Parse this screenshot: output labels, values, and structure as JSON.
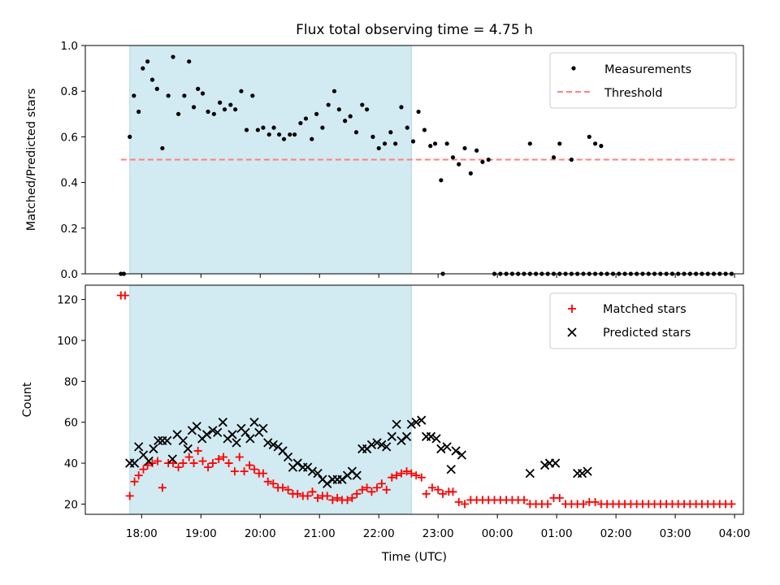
{
  "chart_data": {
    "title": "Flux total observing time = 4.75 h",
    "xlabel": "Time (UTC)",
    "x_ticks": [
      "18:00",
      "19:00",
      "20:00",
      "21:00",
      "22:00",
      "23:00",
      "00:00",
      "01:00",
      "02:00",
      "03:00",
      "04:00"
    ],
    "x_range_hours": [
      17.05,
      28.15
    ],
    "observing_window_hours": [
      17.8,
      22.55
    ],
    "colors": {
      "window": "#add8e6",
      "threshold": "#ff7f7f",
      "measurements": "#000000",
      "matched": "#ff0000",
      "predicted": "#000000"
    },
    "top": {
      "type": "scatter",
      "ylabel": "Matched/Predicted stars",
      "ylim": [
        0,
        1.0
      ],
      "y_ticks": [
        "0.0",
        "0.2",
        "0.4",
        "0.6",
        "0.8",
        "1.0"
      ],
      "legend": {
        "position": "top-right",
        "entries": [
          "Measurements",
          "Threshold"
        ]
      },
      "threshold": {
        "value": 0.5,
        "x_range": [
          17.65,
          28.0
        ]
      },
      "measurements": [
        [
          17.65,
          0
        ],
        [
          17.7,
          0
        ],
        [
          17.8,
          0.6
        ],
        [
          17.87,
          0.78
        ],
        [
          17.95,
          0.71
        ],
        [
          18.02,
          0.9
        ],
        [
          18.1,
          0.93
        ],
        [
          18.18,
          0.85
        ],
        [
          18.26,
          0.81
        ],
        [
          18.35,
          0.55
        ],
        [
          18.45,
          0.78
        ],
        [
          18.53,
          0.95
        ],
        [
          18.62,
          0.7
        ],
        [
          18.72,
          0.78
        ],
        [
          18.8,
          0.93
        ],
        [
          18.88,
          0.73
        ],
        [
          18.95,
          0.81
        ],
        [
          19.03,
          0.79
        ],
        [
          19.12,
          0.71
        ],
        [
          19.22,
          0.7
        ],
        [
          19.32,
          0.75
        ],
        [
          19.4,
          0.72
        ],
        [
          19.5,
          0.74
        ],
        [
          19.58,
          0.72
        ],
        [
          19.68,
          0.8
        ],
        [
          19.77,
          0.63
        ],
        [
          19.87,
          0.78
        ],
        [
          19.96,
          0.63
        ],
        [
          20.05,
          0.64
        ],
        [
          20.15,
          0.61
        ],
        [
          20.23,
          0.64
        ],
        [
          20.32,
          0.61
        ],
        [
          20.4,
          0.59
        ],
        [
          20.5,
          0.61
        ],
        [
          20.58,
          0.61
        ],
        [
          20.68,
          0.66
        ],
        [
          20.77,
          0.68
        ],
        [
          20.87,
          0.59
        ],
        [
          20.95,
          0.7
        ],
        [
          21.05,
          0.64
        ],
        [
          21.15,
          0.74
        ],
        [
          21.25,
          0.8
        ],
        [
          21.33,
          0.72
        ],
        [
          21.43,
          0.67
        ],
        [
          21.52,
          0.69
        ],
        [
          21.62,
          0.62
        ],
        [
          21.72,
          0.74
        ],
        [
          21.8,
          0.72
        ],
        [
          21.9,
          0.6
        ],
        [
          22.0,
          0.55
        ],
        [
          22.1,
          0.57
        ],
        [
          22.2,
          0.62
        ],
        [
          22.28,
          0.57
        ],
        [
          22.38,
          0.73
        ],
        [
          22.48,
          0.64
        ],
        [
          22.58,
          0.58
        ],
        [
          22.67,
          0.71
        ],
        [
          22.77,
          0.63
        ],
        [
          22.87,
          0.56
        ],
        [
          22.95,
          0.57
        ],
        [
          23.05,
          0.41
        ],
        [
          23.15,
          0.57
        ],
        [
          23.25,
          0.51
        ],
        [
          23.35,
          0.48
        ],
        [
          23.45,
          0.55
        ],
        [
          23.55,
          0.44
        ],
        [
          23.65,
          0.54
        ],
        [
          23.75,
          0.49
        ],
        [
          23.85,
          0.5
        ],
        [
          23.08,
          0
        ],
        [
          23.95,
          0
        ],
        [
          24.05,
          0
        ],
        [
          24.15,
          0
        ],
        [
          24.25,
          0
        ],
        [
          24.35,
          0
        ],
        [
          24.45,
          0
        ],
        [
          24.55,
          0
        ],
        [
          24.65,
          0
        ],
        [
          24.75,
          0
        ],
        [
          24.85,
          0
        ],
        [
          24.95,
          0
        ],
        [
          25.05,
          0
        ],
        [
          25.15,
          0
        ],
        [
          25.25,
          0
        ],
        [
          25.35,
          0
        ],
        [
          25.45,
          0
        ],
        [
          25.55,
          0
        ],
        [
          25.65,
          0
        ],
        [
          25.75,
          0
        ],
        [
          24.55,
          0.57
        ],
        [
          24.95,
          0.51
        ],
        [
          25.05,
          0.57
        ],
        [
          25.25,
          0.5
        ],
        [
          25.55,
          0.6
        ],
        [
          25.65,
          0.57
        ],
        [
          25.75,
          0.56
        ],
        [
          25.85,
          0
        ],
        [
          25.95,
          0
        ],
        [
          26.05,
          0
        ],
        [
          26.15,
          0
        ],
        [
          26.25,
          0
        ],
        [
          26.35,
          0
        ],
        [
          26.45,
          0
        ],
        [
          26.55,
          0
        ],
        [
          26.65,
          0
        ],
        [
          26.75,
          0
        ],
        [
          26.85,
          0
        ],
        [
          26.95,
          0
        ],
        [
          27.05,
          0
        ],
        [
          27.15,
          0
        ],
        [
          27.25,
          0
        ],
        [
          27.35,
          0
        ],
        [
          27.45,
          0
        ],
        [
          27.55,
          0
        ],
        [
          27.65,
          0
        ],
        [
          27.75,
          0
        ],
        [
          27.85,
          0
        ],
        [
          27.95,
          0
        ]
      ]
    },
    "bottom": {
      "type": "scatter",
      "ylabel": "Count",
      "ylim": [
        15,
        127
      ],
      "y_ticks": [
        "20",
        "40",
        "60",
        "80",
        "100",
        "120"
      ],
      "legend": {
        "position": "top-right",
        "entries": [
          "Matched stars",
          "Predicted stars"
        ]
      },
      "matched": [
        [
          17.65,
          122
        ],
        [
          17.72,
          122
        ],
        [
          17.8,
          24
        ],
        [
          17.88,
          31
        ],
        [
          17.95,
          34
        ],
        [
          18.03,
          37
        ],
        [
          18.1,
          39
        ],
        [
          18.18,
          40
        ],
        [
          18.27,
          41
        ],
        [
          18.35,
          28
        ],
        [
          18.45,
          40
        ],
        [
          18.53,
          40
        ],
        [
          18.62,
          38
        ],
        [
          18.7,
          40
        ],
        [
          18.8,
          43
        ],
        [
          18.88,
          40
        ],
        [
          18.95,
          46
        ],
        [
          19.03,
          41
        ],
        [
          19.12,
          38
        ],
        [
          19.2,
          40
        ],
        [
          19.3,
          42
        ],
        [
          19.38,
          43
        ],
        [
          19.47,
          40
        ],
        [
          19.57,
          36
        ],
        [
          19.65,
          43
        ],
        [
          19.73,
          36
        ],
        [
          19.82,
          39
        ],
        [
          19.9,
          37
        ],
        [
          19.98,
          35
        ],
        [
          20.05,
          35
        ],
        [
          20.13,
          31
        ],
        [
          20.22,
          30
        ],
        [
          20.3,
          28
        ],
        [
          20.38,
          28
        ],
        [
          20.47,
          27
        ],
        [
          20.55,
          25
        ],
        [
          20.63,
          25
        ],
        [
          20.72,
          24
        ],
        [
          20.8,
          24
        ],
        [
          20.88,
          26
        ],
        [
          20.97,
          23
        ],
        [
          21.05,
          24
        ],
        [
          21.13,
          24
        ],
        [
          21.22,
          22
        ],
        [
          21.3,
          23
        ],
        [
          21.38,
          22
        ],
        [
          21.47,
          22
        ],
        [
          21.55,
          23
        ],
        [
          21.63,
          25
        ],
        [
          21.72,
          27
        ],
        [
          21.8,
          28
        ],
        [
          21.88,
          26
        ],
        [
          21.97,
          28
        ],
        [
          22.05,
          30
        ],
        [
          22.13,
          27
        ],
        [
          22.22,
          33
        ],
        [
          22.3,
          34
        ],
        [
          22.38,
          35
        ],
        [
          22.47,
          36
        ],
        [
          22.55,
          35
        ],
        [
          22.63,
          34
        ],
        [
          22.72,
          33
        ],
        [
          22.8,
          25
        ],
        [
          22.9,
          28
        ],
        [
          23.0,
          27
        ],
        [
          23.08,
          25
        ],
        [
          23.18,
          26
        ],
        [
          23.25,
          26
        ],
        [
          23.35,
          21
        ],
        [
          23.45,
          20
        ],
        [
          23.55,
          22
        ],
        [
          23.65,
          22
        ],
        [
          23.75,
          22
        ],
        [
          23.85,
          22
        ],
        [
          23.95,
          22
        ],
        [
          24.05,
          22
        ],
        [
          24.15,
          22
        ],
        [
          24.25,
          22
        ],
        [
          24.35,
          22
        ],
        [
          24.45,
          22
        ],
        [
          24.55,
          20
        ],
        [
          24.65,
          20
        ],
        [
          24.75,
          20
        ],
        [
          24.85,
          20
        ],
        [
          24.95,
          23
        ],
        [
          25.05,
          23
        ],
        [
          25.15,
          20
        ],
        [
          25.25,
          20
        ],
        [
          25.35,
          20
        ],
        [
          25.45,
          20
        ],
        [
          25.55,
          21
        ],
        [
          25.65,
          21
        ],
        [
          25.75,
          20
        ],
        [
          25.85,
          20
        ],
        [
          25.95,
          20
        ],
        [
          26.05,
          20
        ],
        [
          26.15,
          20
        ],
        [
          26.25,
          20
        ],
        [
          26.35,
          20
        ],
        [
          26.45,
          20
        ],
        [
          26.55,
          20
        ],
        [
          26.65,
          20
        ],
        [
          26.75,
          20
        ],
        [
          26.85,
          20
        ],
        [
          26.95,
          20
        ],
        [
          27.05,
          20
        ],
        [
          27.15,
          20
        ],
        [
          27.25,
          20
        ],
        [
          27.35,
          20
        ],
        [
          27.45,
          20
        ],
        [
          27.55,
          20
        ],
        [
          27.65,
          20
        ],
        [
          27.75,
          20
        ],
        [
          27.85,
          20
        ],
        [
          27.95,
          20
        ]
      ],
      "predicted": [
        [
          17.8,
          40
        ],
        [
          17.88,
          40
        ],
        [
          17.95,
          48
        ],
        [
          18.03,
          44
        ],
        [
          18.12,
          41
        ],
        [
          18.2,
          47
        ],
        [
          18.28,
          51
        ],
        [
          18.35,
          51
        ],
        [
          18.43,
          51
        ],
        [
          18.52,
          42
        ],
        [
          18.6,
          54
        ],
        [
          18.7,
          51
        ],
        [
          18.78,
          47
        ],
        [
          18.85,
          56
        ],
        [
          18.93,
          58
        ],
        [
          19.02,
          52
        ],
        [
          19.1,
          54
        ],
        [
          19.2,
          56
        ],
        [
          19.28,
          55
        ],
        [
          19.37,
          60
        ],
        [
          19.45,
          52
        ],
        [
          19.53,
          54
        ],
        [
          19.6,
          50
        ],
        [
          19.68,
          57
        ],
        [
          19.75,
          55
        ],
        [
          19.83,
          52
        ],
        [
          19.9,
          60
        ],
        [
          19.98,
          55
        ],
        [
          20.05,
          57
        ],
        [
          20.13,
          50
        ],
        [
          20.22,
          49
        ],
        [
          20.3,
          48
        ],
        [
          20.38,
          46
        ],
        [
          20.47,
          43
        ],
        [
          20.55,
          38
        ],
        [
          20.63,
          40
        ],
        [
          20.72,
          38
        ],
        [
          20.8,
          38
        ],
        [
          20.88,
          36
        ],
        [
          20.97,
          35
        ],
        [
          21.05,
          32
        ],
        [
          21.13,
          30
        ],
        [
          21.22,
          32
        ],
        [
          21.3,
          32
        ],
        [
          21.38,
          32
        ],
        [
          21.47,
          34
        ],
        [
          21.55,
          36
        ],
        [
          21.63,
          34
        ],
        [
          21.72,
          47
        ],
        [
          21.8,
          47
        ],
        [
          21.88,
          49
        ],
        [
          21.97,
          50
        ],
        [
          22.05,
          49
        ],
        [
          22.13,
          48
        ],
        [
          22.22,
          53
        ],
        [
          22.3,
          59
        ],
        [
          22.38,
          51
        ],
        [
          22.47,
          53
        ],
        [
          22.55,
          59
        ],
        [
          22.63,
          60
        ],
        [
          22.72,
          61
        ],
        [
          22.8,
          53
        ],
        [
          22.88,
          53
        ],
        [
          22.97,
          52
        ],
        [
          23.05,
          47
        ],
        [
          23.15,
          48
        ],
        [
          23.22,
          37
        ],
        [
          23.3,
          46
        ],
        [
          23.4,
          44
        ],
        [
          24.55,
          35
        ],
        [
          24.8,
          39
        ],
        [
          24.88,
          40
        ],
        [
          24.98,
          40
        ],
        [
          25.35,
          35
        ],
        [
          25.43,
          35
        ],
        [
          25.52,
          36
        ]
      ]
    }
  }
}
